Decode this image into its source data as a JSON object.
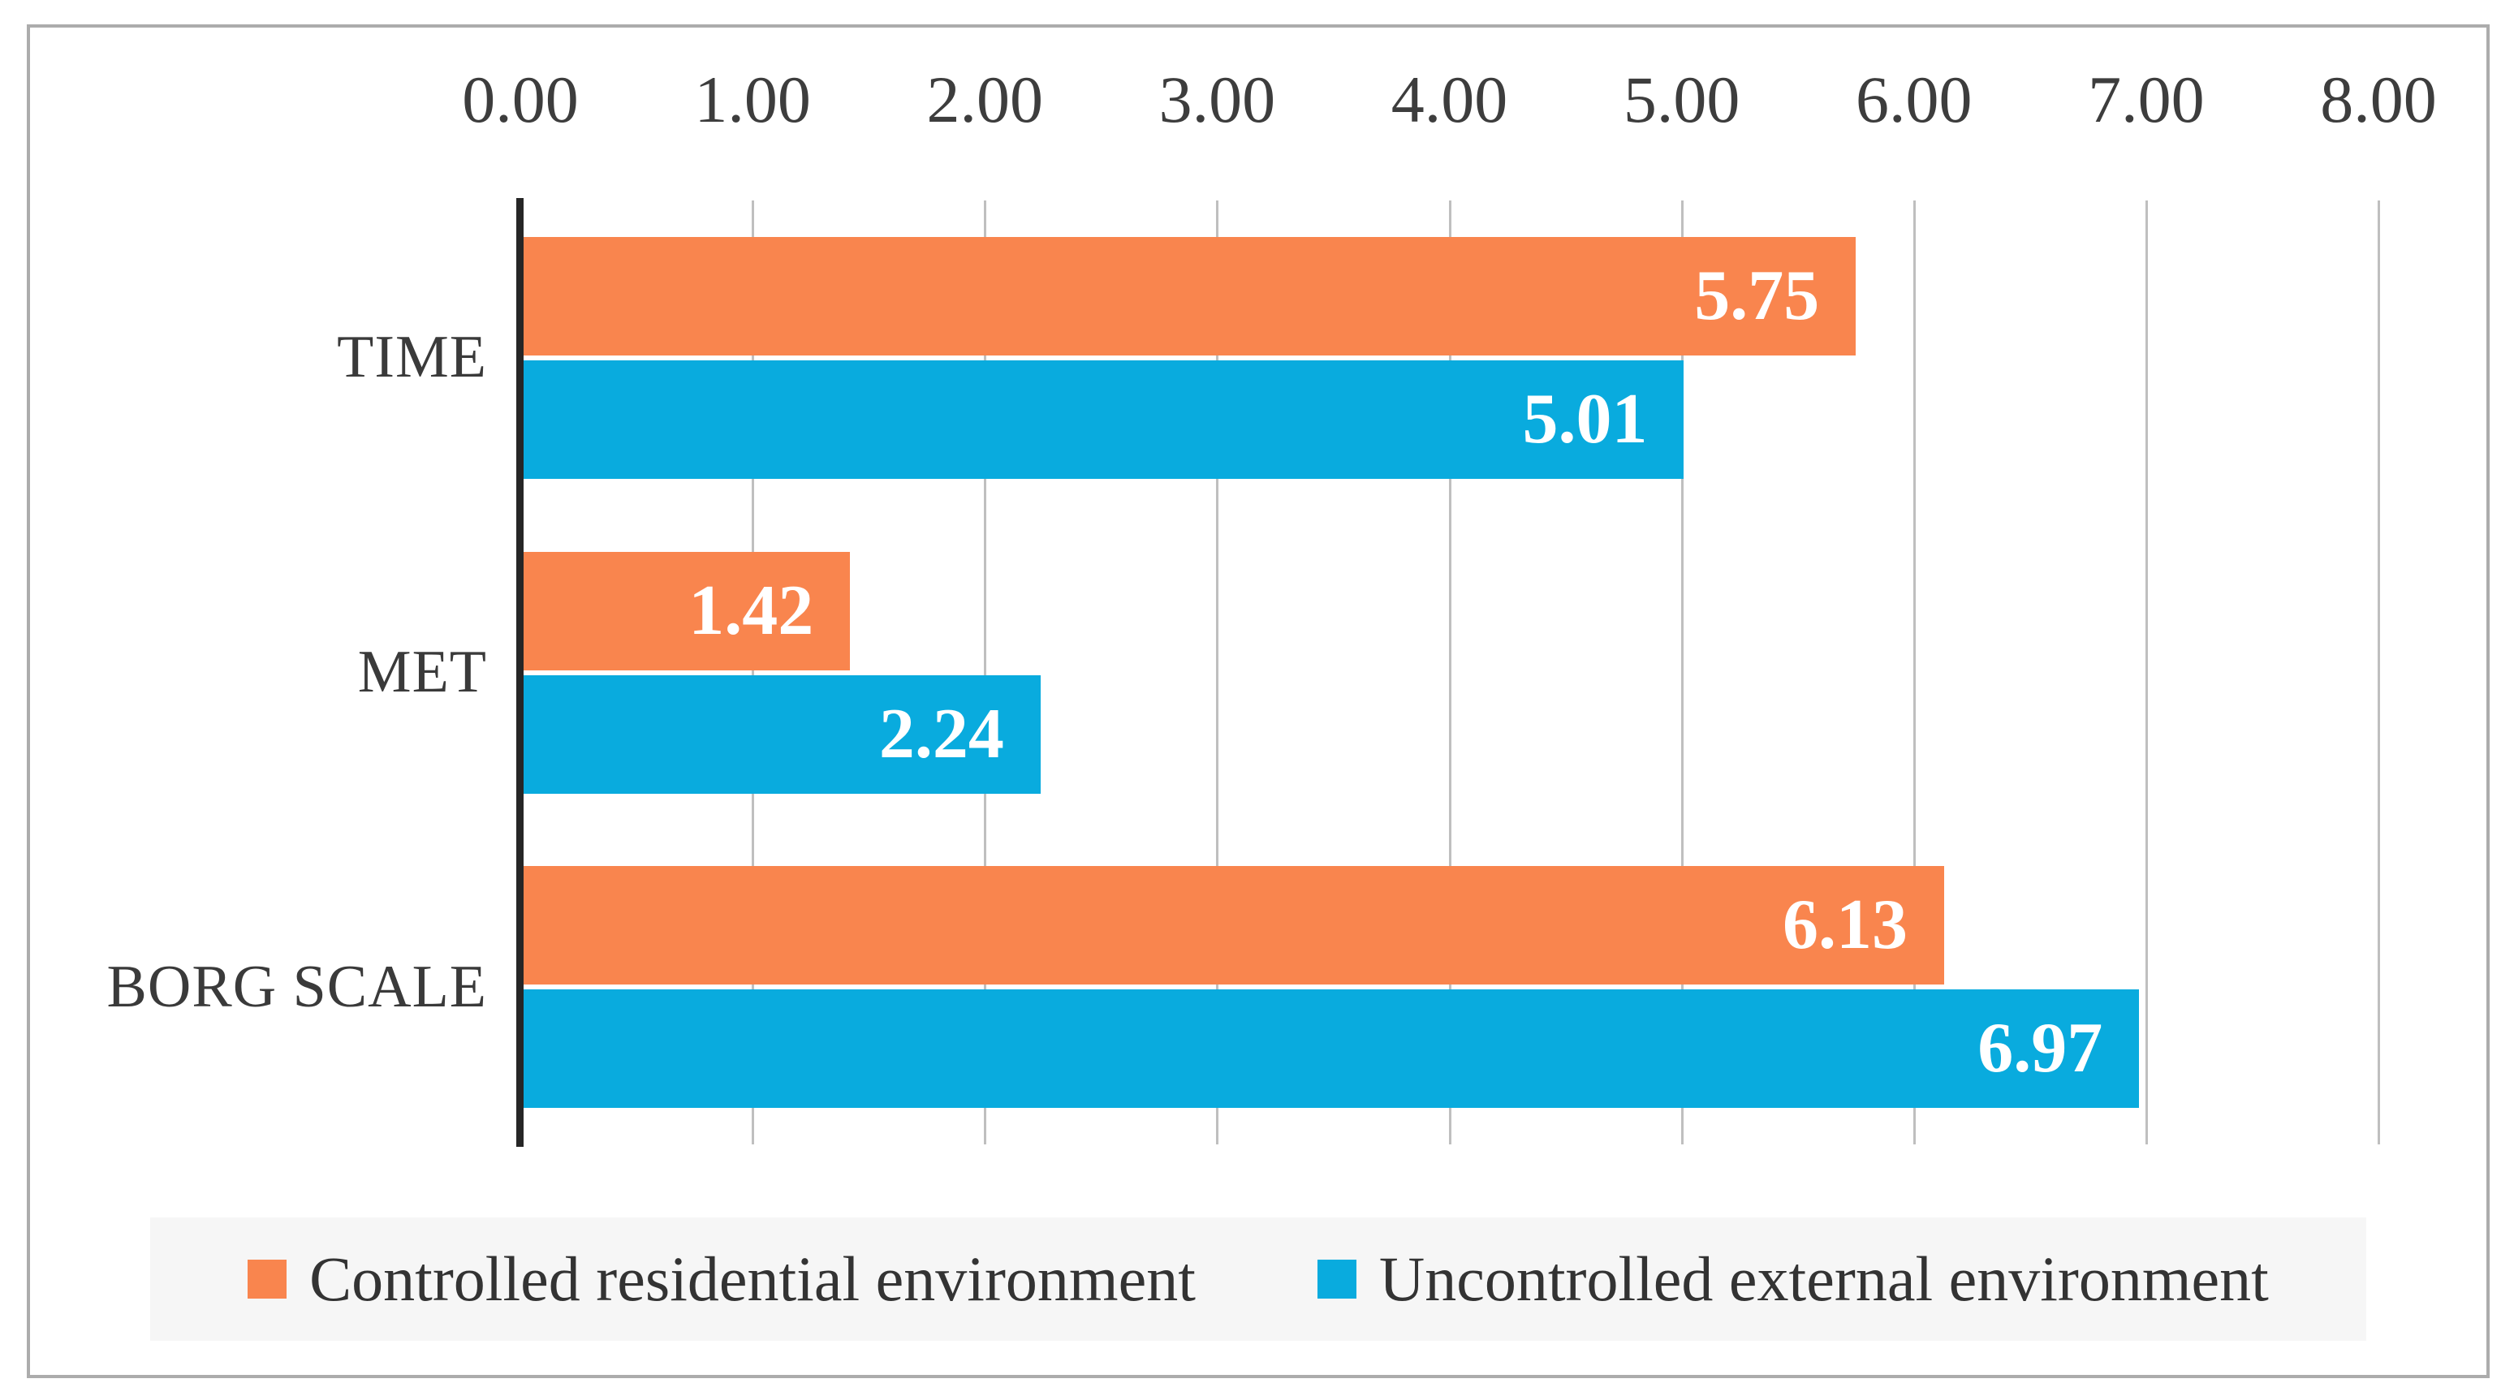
{
  "chart_data": {
    "type": "bar",
    "orientation": "horizontal",
    "title": "",
    "xlabel": "",
    "ylabel": "",
    "categories": [
      "TIME",
      "MET",
      "BORG SCALE"
    ],
    "series": [
      {
        "name": "Controlled residential environment",
        "color": "#F9854E",
        "values": [
          5.75,
          1.42,
          6.13
        ],
        "labels": [
          "5.75",
          "1.42",
          "6.13"
        ]
      },
      {
        "name": "Uncontrolled external environment",
        "color": "#09ABDE",
        "values": [
          5.01,
          2.24,
          6.97
        ],
        "labels": [
          "5.01",
          "2.24",
          "6.97"
        ]
      }
    ],
    "x_ticks": [
      "0.00",
      "1.00",
      "2.00",
      "3.00",
      "4.00",
      "5.00",
      "6.00",
      "7.00",
      "8.00"
    ],
    "xlim": [
      0,
      8
    ],
    "grid": true,
    "legend_position": "bottom"
  },
  "style": {
    "background": "#FFFFFF",
    "frame_border_color": "#ACACAC",
    "axis_line_color": "#262626",
    "gridline_color": "#BFBFBF",
    "tick_label_color": "#3D3D3D",
    "category_label_color": "#3A3A3A",
    "value_label_color": "#FFFFFF",
    "legend_background": "#F6F6F6",
    "legend_text_color": "#333333"
  }
}
